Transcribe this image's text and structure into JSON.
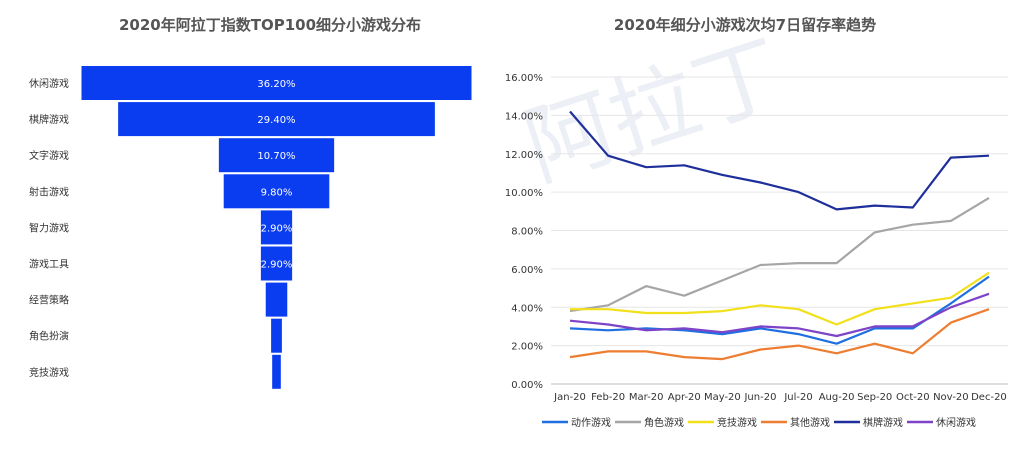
{
  "chart_data": [
    {
      "type": "bar",
      "orientation": "horizontal-funnel",
      "title": "2020年阿拉丁指数TOP100细分小游戏分布",
      "categories": [
        "休闲游戏",
        "棋牌游戏",
        "文字游戏",
        "射击游戏",
        "智力游戏",
        "游戏工具",
        "经营策略",
        "角色扮演",
        "竞技游戏"
      ],
      "values": [
        36.2,
        29.4,
        10.7,
        9.8,
        2.9,
        2.9,
        2.0,
        1.0,
        0.8
      ],
      "labels": [
        "36.20%",
        "29.40%",
        "10.70%",
        "9.80%",
        "2.90%",
        "2.90%",
        "",
        "",
        ""
      ],
      "color": "#0a3cf0"
    },
    {
      "type": "line",
      "title": "2020年细分小游戏次均7日留存率趋势",
      "categories": [
        "Jan-20",
        "Feb-20",
        "Mar-20",
        "Apr-20",
        "May-20",
        "Jun-20",
        "Jul-20",
        "Aug-20",
        "Sep-20",
        "Oct-20",
        "Nov-20",
        "Dec-20"
      ],
      "ylim": [
        0,
        16
      ],
      "yticks": [
        "0.00%",
        "2.00%",
        "4.00%",
        "6.00%",
        "8.00%",
        "10.00%",
        "12.00%",
        "14.00%",
        "16.00%"
      ],
      "legend_position": "bottom",
      "series": [
        {
          "name": "动作游戏",
          "color": "#1f6fe0",
          "values": [
            2.9,
            2.8,
            2.9,
            2.8,
            2.6,
            2.9,
            2.6,
            2.1,
            2.9,
            2.9,
            4.2,
            5.6
          ]
        },
        {
          "name": "角色游戏",
          "color": "#a6a6a6",
          "values": [
            3.8,
            4.1,
            5.1,
            4.6,
            5.4,
            6.2,
            6.3,
            6.3,
            7.9,
            8.3,
            8.5,
            9.7
          ]
        },
        {
          "name": "竞技游戏",
          "color": "#f2e01a",
          "values": [
            3.9,
            3.9,
            3.7,
            3.7,
            3.8,
            4.1,
            3.9,
            3.1,
            3.9,
            4.2,
            4.5,
            5.8
          ]
        },
        {
          "name": "其他游戏",
          "color": "#ed7d31",
          "values": [
            1.4,
            1.7,
            1.7,
            1.4,
            1.3,
            1.8,
            2.0,
            1.6,
            2.1,
            1.6,
            3.2,
            3.9
          ]
        },
        {
          "name": "棋牌游戏",
          "color": "#1e2f9b",
          "values": [
            14.2,
            11.9,
            11.3,
            11.4,
            10.9,
            10.5,
            10.0,
            9.1,
            9.3,
            9.2,
            11.8,
            11.9
          ]
        },
        {
          "name": "休闲游戏",
          "color": "#7e43c7",
          "values": [
            3.3,
            3.1,
            2.8,
            2.9,
            2.7,
            3.0,
            2.9,
            2.5,
            3.0,
            3.0,
            4.0,
            4.7
          ]
        }
      ]
    }
  ],
  "watermark": "阿拉丁"
}
